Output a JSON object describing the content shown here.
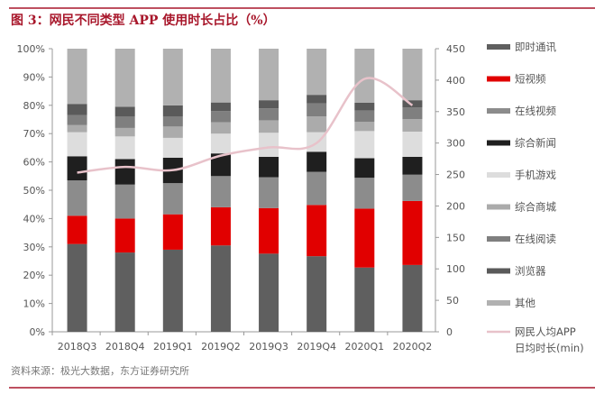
{
  "chart_data": {
    "type": "bar",
    "stacked": true,
    "title": "图 3：网民不同类型 APP 使用时长占比（%）",
    "source": "资料来源：极光大数据，东方证券研究所",
    "categories": [
      "2018Q3",
      "2018Q4",
      "2019Q1",
      "2019Q2",
      "2019Q3",
      "2019Q4",
      "2020Q1",
      "2020Q2"
    ],
    "y_left": {
      "ylim": [
        0,
        100
      ],
      "ticks": [
        "0%",
        "10%",
        "20%",
        "30%",
        "40%",
        "50%",
        "60%",
        "70%",
        "80%",
        "90%",
        "100%"
      ]
    },
    "y_right": {
      "ylim": [
        0,
        450
      ],
      "ticks": [
        "0",
        "50",
        "100",
        "150",
        "200",
        "250",
        "300",
        "350",
        "400",
        "450"
      ]
    },
    "grid": false,
    "legend_position": "right",
    "series": [
      {
        "name": "即时通讯",
        "color": "#5f5f5f",
        "values": [
          31,
          28,
          29,
          30.5,
          27.6,
          26.7,
          22.7,
          23.6
        ]
      },
      {
        "name": "短视频",
        "color": "#e10000",
        "values": [
          10,
          12,
          12.5,
          13.5,
          16.1,
          18.1,
          20.8,
          22.6
        ]
      },
      {
        "name": "在线视频",
        "color": "#8c8c8c",
        "values": [
          12.5,
          12,
          11,
          11,
          10.9,
          11.7,
          10.9,
          9.3
        ]
      },
      {
        "name": "综合新闻",
        "color": "#1f1f1f",
        "values": [
          8.5,
          9,
          9,
          8,
          7.2,
          7.1,
          6.9,
          6.3
        ]
      },
      {
        "name": "手机游戏",
        "color": "#dddddd",
        "values": [
          8.5,
          8,
          7,
          7,
          8.5,
          6.9,
          9.6,
          8.9
        ]
      },
      {
        "name": "综合商城",
        "color": "#ababab",
        "values": [
          2.5,
          3,
          4,
          4,
          4.4,
          5.6,
          3.3,
          4.4
        ]
      },
      {
        "name": "在线阅读",
        "color": "#7f7f7f",
        "values": [
          3.5,
          4,
          3.5,
          4,
          4.2,
          4.6,
          4.0,
          4.1
        ]
      },
      {
        "name": "浏览器",
        "color": "#5a5a5a",
        "values": [
          4,
          3.5,
          4,
          3,
          2.9,
          3.0,
          2.7,
          2.6
        ]
      },
      {
        "name": "其他",
        "color": "#b1b1b1",
        "values": [
          19.5,
          20.5,
          20,
          19,
          18.2,
          16.3,
          19.1,
          18.2
        ]
      }
    ],
    "line": {
      "name": "网民人均APP日均时长(min)",
      "name_lines": [
        "网民人均APP",
        "日均时长(min)"
      ],
      "axis": "right",
      "color": "#e8c2ca",
      "values": [
        253,
        262,
        257,
        280,
        293,
        300,
        402,
        360
      ]
    }
  }
}
